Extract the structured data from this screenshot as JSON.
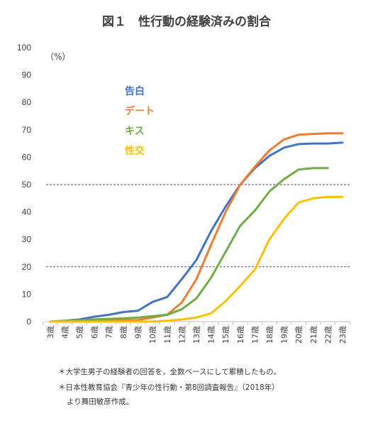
{
  "chart_data": {
    "type": "line",
    "title": "図１　性行動の経験済みの割合",
    "unit_label": "（%）",
    "ylim": [
      0,
      100
    ],
    "y_ticks": [
      "0",
      "10",
      "20",
      "30",
      "40",
      "50",
      "60",
      "70",
      "80",
      "90",
      "100"
    ],
    "y_tick_values": [
      0,
      10,
      20,
      30,
      40,
      50,
      60,
      70,
      80,
      90,
      100
    ],
    "categories": [
      "3歳",
      "4歳",
      "5歳",
      "6歳",
      "7歳",
      "8歳",
      "9歳",
      "10歳",
      "11歳",
      "12歳",
      "13歳",
      "14歳",
      "15歳",
      "16歳",
      "17歳",
      "18歳",
      "19歳",
      "20歳",
      "21歳",
      "22歳",
      "23歳"
    ],
    "reference_lines": [
      20,
      50
    ],
    "grid": false,
    "legend_position": "top-left",
    "series": [
      {
        "name": "告白",
        "color": "#4472C4",
        "values": [
          0,
          0.3,
          0.8,
          1.8,
          2.5,
          3.5,
          4.0,
          7.2,
          9.0,
          15.5,
          22.5,
          33.0,
          42.0,
          50.0,
          56.0,
          60.5,
          63.5,
          64.8,
          65.0,
          65.0,
          65.3
        ]
      },
      {
        "name": "デート",
        "color": "#ED7D31",
        "values": [
          0,
          0.1,
          0.2,
          0.3,
          0.4,
          0.5,
          0.6,
          1.5,
          2.5,
          7.0,
          15.5,
          28.0,
          40.0,
          50.0,
          56.5,
          62.5,
          66.5,
          68.2,
          68.5,
          68.7,
          68.7
        ]
      },
      {
        "name": "キス",
        "color": "#70AD47",
        "values": [
          0,
          0.3,
          0.5,
          0.8,
          1.0,
          1.2,
          1.5,
          2.0,
          2.5,
          4.5,
          8.5,
          16.0,
          25.5,
          35.0,
          40.5,
          47.5,
          52.0,
          55.5,
          56.0,
          56.0,
          null
        ]
      },
      {
        "name": "性交",
        "color": "#FFC000",
        "values": [
          0,
          0,
          0,
          0,
          0,
          0,
          0,
          0,
          0.3,
          0.8,
          1.5,
          3.0,
          7.5,
          13.0,
          19.0,
          30.0,
          37.5,
          43.5,
          45.0,
          45.5,
          45.5
        ]
      }
    ]
  },
  "notes": [
    "＊大学生男子の経験者の回答を，全数ベースにして累積したもの。",
    "＊日本性教育協会『青少年の性行動・第8回調査報告』（2018年）",
    "より舞田敏彦作成。"
  ]
}
